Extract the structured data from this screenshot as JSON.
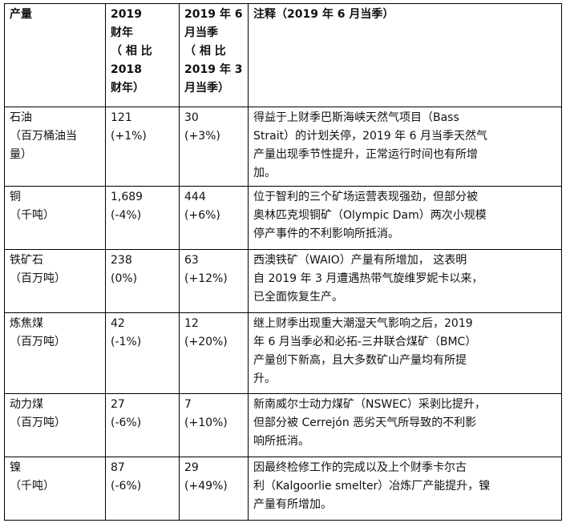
{
  "header": {
    "product": "产量",
    "fy_lines": [
      "2019",
      "财年",
      "（ 相 比",
      "2018",
      "财年）"
    ],
    "quarter_lines": [
      "2019 年 6",
      "月当季",
      "（ 相 比",
      "2019 年 3",
      "月当季）"
    ],
    "note": "注释（2019 年 6 月当季）"
  },
  "rows": [
    {
      "product_lines": [
        "石油",
        "（百万桶油当",
        "量）"
      ],
      "fy_value": "121",
      "fy_change": "(+1%)",
      "q_value": "30",
      "q_change": "(+3%)",
      "note_lines": [
        "得益于上财季巴斯海峡天然气项目（Bass",
        "Strait）的计划关停，2019 年 6 月当季天然气",
        "产量出现季节性提升，正常运行时间也有所增",
        "加。"
      ]
    },
    {
      "product_lines": [
        "铜",
        "（千吨）"
      ],
      "fy_value": "1,689",
      "fy_change": "(-4%)",
      "q_value": "444",
      "q_change": "(+6%)",
      "note_lines": [
        "位于智利的三个矿场运营表现强劲，但部分被",
        "奥林匹克坝铜矿（Olympic Dam）两次小规模",
        "停产事件的不利影响所抵消。"
      ]
    },
    {
      "product_lines": [
        "铁矿石",
        "（百万吨）"
      ],
      "fy_value": "238",
      "fy_change": "(0%)",
      "q_value": "63",
      "q_change": "(+12%)",
      "note_lines": [
        "西澳铁矿（WAIO）产量有所增加， 这表明",
        "自 2019 年 3 月遭遇热带气旋维罗妮卡以来，",
        "已全面恢复生产。"
      ]
    },
    {
      "product_lines": [
        "炼焦煤",
        "（百万吨）"
      ],
      "fy_value": "42",
      "fy_change": "(-1%)",
      "q_value": "12",
      "q_change": "(+20%)",
      "note_lines": [
        "继上财季出现重大潮湿天气影响之后，2019",
        "年 6 月当季必和必拓-三井联合煤矿（BMC）",
        "产量创下新高，且大多数矿山产量均有所提",
        "升。"
      ]
    },
    {
      "product_lines": [
        "动力煤",
        "（百万吨）"
      ],
      "fy_value": "27",
      "fy_change": "(-6%)",
      "q_value": "7",
      "q_change": "(+10%)",
      "note_lines": [
        "新南威尔士动力煤矿（NSWEC）采剥比提升，",
        "但部分被 Cerrejón 恶劣天气所导致的不利影",
        "响所抵消。"
      ]
    },
    {
      "product_lines": [
        "镍",
        "（千吨）"
      ],
      "fy_value": "87",
      "fy_change": "(-6%)",
      "q_value": "29",
      "q_change": "(+49%)",
      "note_lines": [
        "因最终检修工作的完成以及上个财季卡尔古",
        "利（Kalgoorlie smelter）冶炼厂产能提升，镍",
        "产量有所增加。"
      ]
    }
  ]
}
